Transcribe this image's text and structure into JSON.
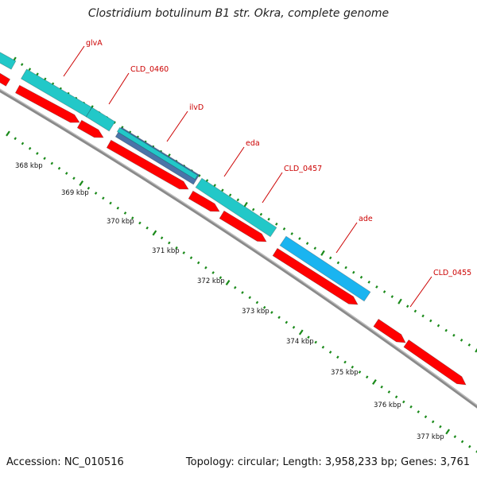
{
  "title": "Clostridium botulinum B1 str. Okra, complete genome",
  "accession": "Accession: NC_010516",
  "topology": "Topology: circular; Length: 3,958,233 bp; Genes: 3,761",
  "colors": {
    "cds_red": "#ff0000",
    "gene_cyan": "#22c8c8",
    "gene_blue": "#1ab4f0",
    "gene_slate": "#4a74a8",
    "backbone": "#8a8a8a",
    "tick_green": "#1a8a1a",
    "label_red": "#cc0000"
  },
  "scale_labels": [
    "368 kbp",
    "369 kbp",
    "370 kbp",
    "371 kbp",
    "372 kbp",
    "373 kbp",
    "374 kbp",
    "375 kbp",
    "376 kbp",
    "377 kbp"
  ],
  "gene_labels": [
    "glvA",
    "CLD_0460",
    "ilvD",
    "eda",
    "CLD_0457",
    "ade",
    "CLD_0455"
  ]
}
